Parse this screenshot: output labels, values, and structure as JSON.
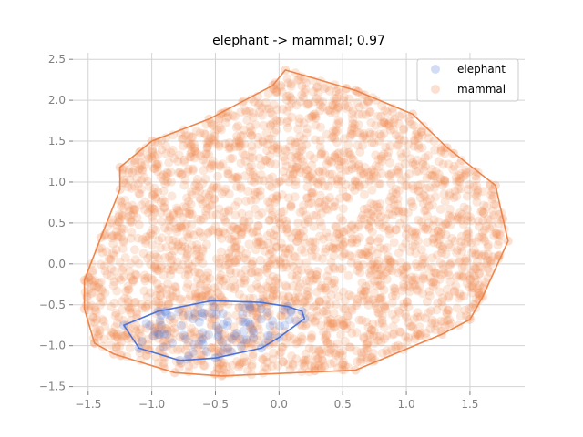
{
  "chart_data": {
    "type": "scatter",
    "title": "elephant -> mammal; 0.97",
    "xlabel": "",
    "ylabel": "",
    "xlim": [
      -1.62,
      1.93
    ],
    "ylim": [
      -1.56,
      2.58
    ],
    "xticks": [
      -1.5,
      -1.0,
      -0.5,
      0.0,
      0.5,
      1.0,
      1.5
    ],
    "xtick_labels": [
      "−1.5",
      "−1.0",
      "−0.5",
      "0.0",
      "0.5",
      "1.0",
      "1.5"
    ],
    "yticks": [
      -1.5,
      -1.0,
      -0.5,
      0.0,
      0.5,
      1.0,
      1.5,
      2.0,
      2.5
    ],
    "ytick_labels": [
      "−1.5",
      "−1.0",
      "−0.5",
      "0.0",
      "0.5",
      "1.0",
      "1.5",
      "2.0",
      "2.5"
    ],
    "grid": true,
    "legend_position": "top-right",
    "series": [
      {
        "name": "elephant",
        "color": "#4c72d6",
        "hull": [
          [
            -0.53,
            -0.45
          ],
          [
            -0.15,
            -0.47
          ],
          [
            0.07,
            -0.52
          ],
          [
            0.18,
            -0.58
          ],
          [
            0.2,
            -0.67
          ],
          [
            0.0,
            -0.9
          ],
          [
            -0.14,
            -1.03
          ],
          [
            -0.5,
            -1.15
          ],
          [
            -0.78,
            -1.18
          ],
          [
            -1.1,
            -1.03
          ],
          [
            -1.22,
            -0.75
          ],
          [
            -0.95,
            -0.58
          ]
        ]
      },
      {
        "name": "mammal",
        "color": "#ee854a",
        "hull": [
          [
            0.05,
            2.37
          ],
          [
            0.6,
            2.12
          ],
          [
            1.05,
            1.83
          ],
          [
            1.32,
            1.42
          ],
          [
            1.7,
            0.96
          ],
          [
            1.76,
            0.55
          ],
          [
            1.8,
            0.28
          ],
          [
            1.6,
            -0.4
          ],
          [
            1.5,
            -0.68
          ],
          [
            1.28,
            -0.86
          ],
          [
            0.6,
            -1.3
          ],
          [
            -0.45,
            -1.37
          ],
          [
            -0.82,
            -1.33
          ],
          [
            -1.3,
            -1.1
          ],
          [
            -1.45,
            -0.97
          ],
          [
            -1.53,
            -0.55
          ],
          [
            -1.53,
            -0.2
          ],
          [
            -1.4,
            0.32
          ],
          [
            -1.25,
            0.91
          ],
          [
            -1.25,
            1.18
          ],
          [
            -1.0,
            1.5
          ],
          [
            -0.55,
            1.77
          ],
          [
            -0.05,
            2.18
          ]
        ]
      }
    ]
  }
}
